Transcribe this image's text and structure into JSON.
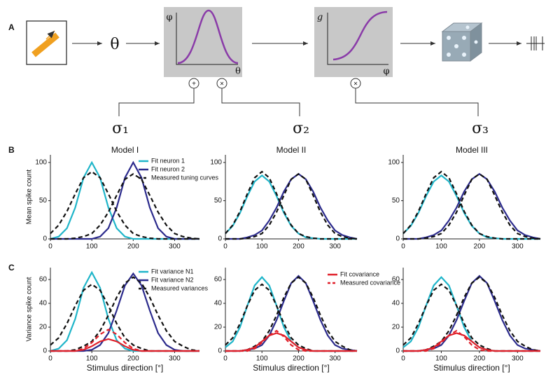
{
  "diagram": {
    "panel_label": "A",
    "stimulus": "θ",
    "tuning_box": {
      "y_label": "φ",
      "x_label": "θ"
    },
    "gain_box": {
      "y_label": "g",
      "x_label": "φ"
    },
    "operators": [
      "+",
      "×",
      "×"
    ],
    "noise": [
      "σ₁",
      "σ₂",
      "σ₃"
    ]
  },
  "panel_labels": [
    "B",
    "C"
  ],
  "chart_data": [
    {
      "type": "line",
      "title": "Model I",
      "y_label": "Mean spike count",
      "x": [
        0,
        20,
        40,
        60,
        80,
        100,
        120,
        140,
        160,
        180,
        200,
        220,
        240,
        260,
        280,
        300,
        320,
        340,
        360
      ],
      "xlim": [
        0,
        360
      ],
      "xticks": [
        0,
        100,
        200,
        300
      ],
      "ylim": [
        0,
        110
      ],
      "yticks": [
        0,
        50,
        100
      ],
      "series": [
        {
          "name": "Fit neuron 1",
          "color": "#1fb5c9",
          "values": [
            0,
            3,
            14,
            41,
            80,
            100,
            80,
            41,
            14,
            3,
            0,
            0,
            0,
            0,
            0,
            0,
            0,
            0,
            0
          ]
        },
        {
          "name": "Fit neuron 2",
          "color": "#2b2a8c",
          "values": [
            0,
            0,
            0,
            0,
            0,
            0,
            3,
            14,
            41,
            80,
            100,
            80,
            41,
            14,
            3,
            0,
            0,
            0,
            0
          ]
        },
        {
          "name": "Measured tuning curves",
          "color": "#111111",
          "dashed": true,
          "values": [
            7,
            18,
            36,
            59,
            80,
            88,
            80,
            59,
            36,
            18,
            7,
            3,
            1,
            0,
            0,
            0,
            0,
            0,
            0
          ]
        },
        {
          "color": "#111111",
          "dashed": true,
          "values": [
            0,
            0,
            0,
            1,
            3,
            7,
            18,
            35,
            57,
            78,
            85,
            78,
            57,
            35,
            18,
            7,
            3,
            1,
            0
          ]
        }
      ]
    },
    {
      "type": "line",
      "title": "Model II",
      "x": [
        0,
        20,
        40,
        60,
        80,
        100,
        120,
        140,
        160,
        180,
        200,
        220,
        240,
        260,
        280,
        300,
        320,
        340,
        360
      ],
      "xlim": [
        0,
        360
      ],
      "xticks": [
        0,
        100,
        200,
        300
      ],
      "ylim": [
        0,
        110
      ],
      "yticks": [
        0,
        50,
        100
      ],
      "series": [
        {
          "color": "#1fb5c9",
          "values": [
            7,
            17,
            34,
            56,
            75,
            83,
            75,
            56,
            34,
            17,
            7,
            2,
            1,
            0,
            0,
            0,
            0,
            0,
            0
          ]
        },
        {
          "color": "#2b2a8c",
          "values": [
            0,
            0,
            0,
            2,
            5,
            11,
            24,
            41,
            62,
            78,
            85,
            78,
            62,
            41,
            24,
            11,
            5,
            2,
            0
          ]
        },
        {
          "color": "#111111",
          "dashed": true,
          "values": [
            7,
            18,
            36,
            59,
            80,
            88,
            80,
            59,
            36,
            18,
            7,
            3,
            1,
            0,
            0,
            0,
            0,
            0,
            0
          ]
        },
        {
          "color": "#111111",
          "dashed": true,
          "values": [
            0,
            0,
            0,
            1,
            3,
            7,
            18,
            35,
            57,
            78,
            85,
            78,
            57,
            35,
            18,
            7,
            3,
            1,
            0
          ]
        }
      ]
    },
    {
      "type": "line",
      "title": "Model III",
      "x": [
        0,
        20,
        40,
        60,
        80,
        100,
        120,
        140,
        160,
        180,
        200,
        220,
        240,
        260,
        280,
        300,
        320,
        340,
        360
      ],
      "xlim": [
        0,
        360
      ],
      "xticks": [
        0,
        100,
        200,
        300
      ],
      "ylim": [
        0,
        110
      ],
      "yticks": [
        0,
        50,
        100
      ],
      "series": [
        {
          "color": "#1fb5c9",
          "values": [
            7,
            17,
            34,
            56,
            75,
            83,
            75,
            56,
            34,
            17,
            7,
            2,
            1,
            0,
            0,
            0,
            0,
            0,
            0
          ]
        },
        {
          "color": "#2b2a8c",
          "values": [
            0,
            0,
            0,
            2,
            5,
            11,
            24,
            41,
            62,
            78,
            85,
            78,
            62,
            41,
            24,
            11,
            5,
            2,
            0
          ]
        },
        {
          "color": "#111111",
          "dashed": true,
          "values": [
            7,
            18,
            36,
            59,
            80,
            88,
            80,
            59,
            36,
            18,
            7,
            3,
            1,
            0,
            0,
            0,
            0,
            0,
            0
          ]
        },
        {
          "color": "#111111",
          "dashed": true,
          "values": [
            0,
            0,
            0,
            1,
            3,
            7,
            18,
            35,
            57,
            78,
            85,
            78,
            57,
            35,
            18,
            7,
            3,
            1,
            0
          ]
        }
      ]
    },
    {
      "type": "line",
      "y_label": "Variance spike count",
      "x_label": "Stimulus direction [°]",
      "x": [
        0,
        20,
        40,
        60,
        80,
        100,
        120,
        140,
        160,
        180,
        200,
        220,
        240,
        260,
        280,
        300,
        320,
        340,
        360
      ],
      "xlim": [
        0,
        360
      ],
      "xticks": [
        0,
        100,
        200,
        300
      ],
      "ylim": [
        0,
        70
      ],
      "yticks": [
        0,
        20,
        40,
        60
      ],
      "series": [
        {
          "name": "Fit variance N1",
          "color": "#1fb5c9",
          "values": [
            0,
            2,
            9,
            27,
            53,
            66,
            53,
            27,
            9,
            2,
            0,
            0,
            0,
            0,
            0,
            0,
            0,
            0,
            0
          ]
        },
        {
          "name": "Fit variance N2",
          "color": "#2b2a8c",
          "values": [
            0,
            0,
            0,
            0,
            0,
            1,
            5,
            15,
            34,
            55,
            65,
            55,
            34,
            15,
            5,
            1,
            0,
            0,
            0
          ]
        },
        {
          "name": "Measured variances",
          "color": "#111111",
          "dashed": true,
          "values": [
            5,
            11,
            23,
            38,
            51,
            56,
            51,
            38,
            23,
            11,
            5,
            2,
            0,
            0,
            0,
            0,
            0,
            0,
            0
          ]
        },
        {
          "color": "#111111",
          "dashed": true,
          "values": [
            0,
            0,
            0,
            1,
            4,
            8,
            17,
            30,
            45,
            57,
            62,
            57,
            45,
            30,
            17,
            8,
            4,
            1,
            0
          ]
        },
        {
          "color": "#e0202a",
          "values": [
            0,
            0,
            0,
            0,
            1,
            4,
            8,
            10,
            8,
            4,
            1,
            0,
            0,
            0,
            0,
            0,
            0,
            0,
            0
          ]
        },
        {
          "color": "#e0202a",
          "dashed": true,
          "values": [
            0,
            0,
            0,
            0,
            2,
            7,
            14,
            18,
            14,
            7,
            2,
            0,
            0,
            0,
            0,
            0,
            0,
            0,
            0
          ]
        }
      ]
    },
    {
      "type": "line",
      "x_label": "Stimulus direction [°]",
      "x": [
        0,
        20,
        40,
        60,
        80,
        100,
        120,
        140,
        160,
        180,
        200,
        220,
        240,
        260,
        280,
        300,
        320,
        340,
        360
      ],
      "xlim": [
        0,
        360
      ],
      "xticks": [
        0,
        100,
        200,
        300
      ],
      "ylim": [
        0,
        70
      ],
      "yticks": [
        0,
        20,
        40,
        60
      ],
      "series": [
        {
          "color": "#1fb5c9",
          "values": [
            3,
            8,
            20,
            38,
            55,
            62,
            55,
            38,
            20,
            8,
            3,
            1,
            0,
            0,
            0,
            0,
            0,
            0,
            0
          ]
        },
        {
          "color": "#2b2a8c",
          "values": [
            0,
            0,
            0,
            1,
            2,
            5,
            13,
            26,
            42,
            57,
            63,
            57,
            42,
            26,
            13,
            5,
            2,
            1,
            0
          ]
        },
        {
          "color": "#111111",
          "dashed": true,
          "values": [
            5,
            11,
            23,
            38,
            51,
            56,
            51,
            38,
            23,
            11,
            5,
            2,
            0,
            0,
            0,
            0,
            0,
            0,
            0
          ]
        },
        {
          "color": "#111111",
          "dashed": true,
          "values": [
            0,
            0,
            0,
            1,
            4,
            8,
            17,
            30,
            45,
            57,
            62,
            57,
            45,
            30,
            17,
            8,
            4,
            1,
            0
          ]
        },
        {
          "name": "Fit covariance",
          "color": "#e0202a",
          "values": [
            0,
            0,
            0,
            1,
            3,
            8,
            13,
            15,
            13,
            8,
            3,
            1,
            0,
            0,
            0,
            0,
            0,
            0,
            0
          ]
        },
        {
          "name": "Measured covariance",
          "color": "#e0202a",
          "dashed": true,
          "values": [
            0,
            0,
            0,
            0,
            2,
            7,
            13,
            17,
            12,
            5,
            1,
            0,
            0,
            0,
            0,
            0,
            0,
            0,
            0
          ]
        }
      ]
    },
    {
      "type": "line",
      "x_label": "Stimulus direction [°]",
      "x": [
        0,
        20,
        40,
        60,
        80,
        100,
        120,
        140,
        160,
        180,
        200,
        220,
        240,
        260,
        280,
        300,
        320,
        340,
        360
      ],
      "xlim": [
        0,
        360
      ],
      "xticks": [
        0,
        100,
        200,
        300
      ],
      "ylim": [
        0,
        70
      ],
      "yticks": [
        0,
        20,
        40,
        60
      ],
      "series": [
        {
          "color": "#1fb5c9",
          "values": [
            3,
            8,
            20,
            38,
            55,
            62,
            55,
            38,
            20,
            8,
            3,
            1,
            0,
            0,
            0,
            0,
            0,
            0,
            0
          ]
        },
        {
          "color": "#2b2a8c",
          "values": [
            0,
            0,
            0,
            1,
            2,
            5,
            13,
            26,
            42,
            57,
            63,
            57,
            42,
            26,
            13,
            5,
            2,
            1,
            0
          ]
        },
        {
          "color": "#111111",
          "dashed": true,
          "values": [
            5,
            11,
            23,
            38,
            51,
            56,
            51,
            38,
            23,
            11,
            5,
            2,
            0,
            0,
            0,
            0,
            0,
            0,
            0
          ]
        },
        {
          "color": "#111111",
          "dashed": true,
          "values": [
            0,
            0,
            0,
            1,
            4,
            8,
            17,
            30,
            45,
            57,
            62,
            57,
            45,
            30,
            17,
            8,
            4,
            1,
            0
          ]
        },
        {
          "color": "#e0202a",
          "values": [
            0,
            0,
            0,
            1,
            3,
            8,
            13,
            15,
            13,
            8,
            3,
            1,
            0,
            0,
            0,
            0,
            0,
            0,
            0
          ]
        },
        {
          "color": "#e0202a",
          "dashed": true,
          "values": [
            0,
            0,
            0,
            0,
            2,
            7,
            13,
            17,
            12,
            5,
            1,
            0,
            0,
            0,
            0,
            0,
            0,
            0,
            0
          ]
        }
      ]
    }
  ]
}
